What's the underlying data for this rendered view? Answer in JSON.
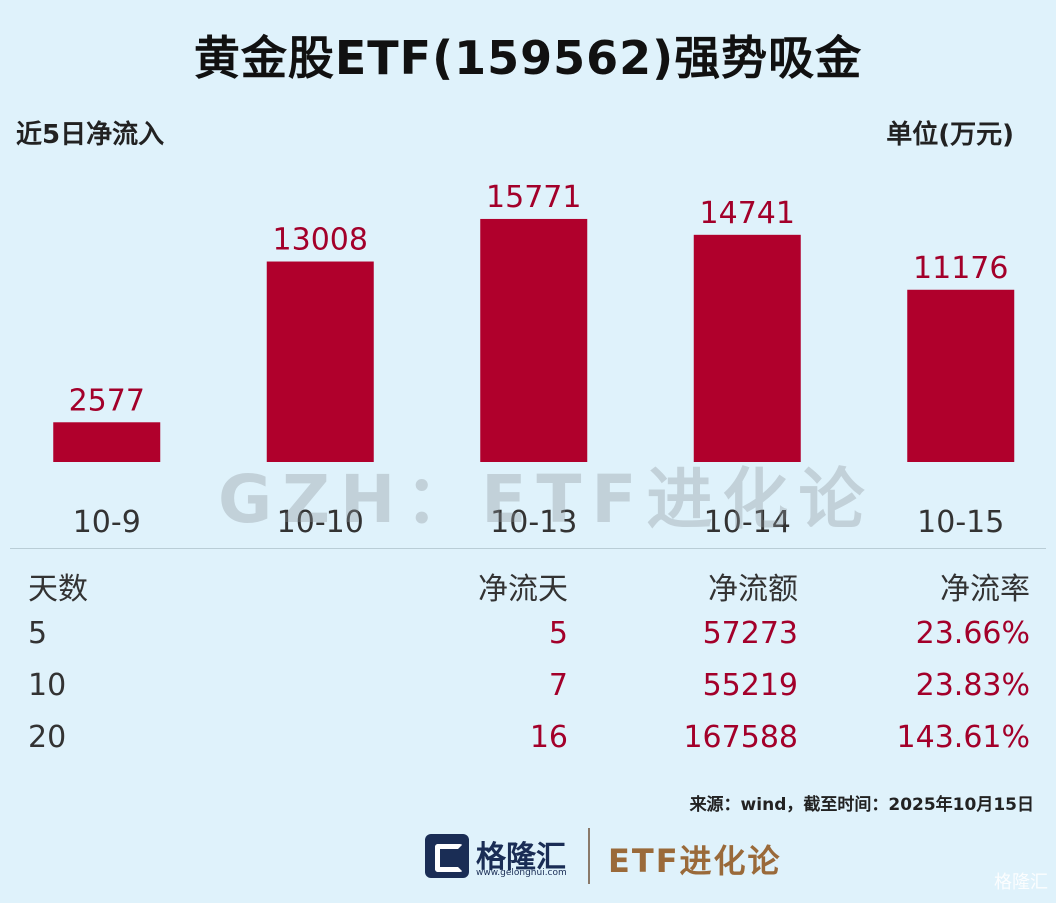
{
  "title": "黄金股ETF(159562)强势吸金",
  "subtitle_left": "近5日净流入",
  "subtitle_right": "单位(万元)",
  "watermark": "GZH：ETF进化论",
  "chart_data": {
    "type": "bar",
    "categories": [
      "10-9",
      "10-10",
      "10-13",
      "10-14",
      "10-15"
    ],
    "values": [
      2577,
      13008,
      15771,
      14741,
      11176
    ],
    "title": "近5日净流入",
    "ylabel": "单位(万元)",
    "ylim": [
      0,
      17000
    ],
    "bar_color": "#b0002c",
    "grid": false
  },
  "table": {
    "headers": [
      "天数",
      "净流天",
      "净流额",
      "净流率"
    ],
    "rows": [
      [
        "5",
        "5",
        "57273",
        "23.66%"
      ],
      [
        "10",
        "7",
        "55219",
        "23.83%"
      ],
      [
        "20",
        "16",
        "167588",
        "143.61%"
      ]
    ]
  },
  "source": "来源：wind，截至时间：2025年10月15日",
  "footer": {
    "logo_name": "格隆汇",
    "logo_url": "www.gelonghui.com",
    "brand": "ETF进化论"
  },
  "corner_mark": "格隆汇",
  "colors": {
    "background": "#dff2fb",
    "bar": "#b0002c",
    "value_text": "#a3002a"
  }
}
